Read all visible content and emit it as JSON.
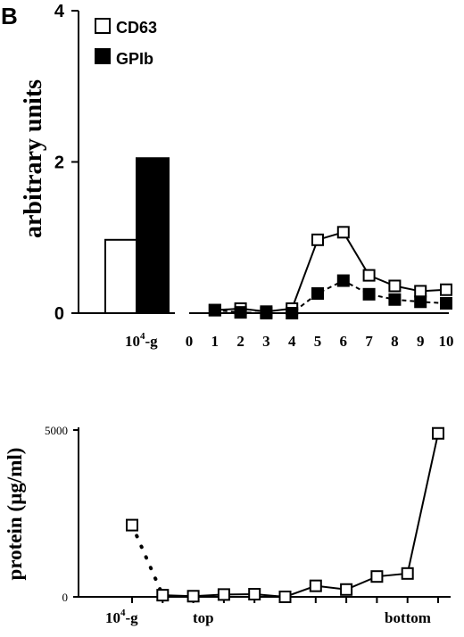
{
  "panel_label": "B",
  "chart_data": [
    {
      "type": "bar+line",
      "ylabel": "arbitrary units",
      "ylim": [
        0,
        4
      ],
      "yticks": [
        "0",
        "2",
        "4"
      ],
      "legend": [
        {
          "name": "CD63",
          "marker": "open-square"
        },
        {
          "name": "GPIb",
          "marker": "filled-square"
        }
      ],
      "bars": {
        "category": "10⁴-g",
        "category_base": "10",
        "category_sup": "4",
        "category_suffix": "-g",
        "series": [
          {
            "name": "CD63",
            "value": 0.97,
            "fill": "#ffffff"
          },
          {
            "name": "GPIb",
            "value": 2.05,
            "fill": "#000000"
          }
        ]
      },
      "xticks": [
        "0",
        "1",
        "2",
        "3",
        "4",
        "5",
        "6",
        "7",
        "8",
        "9",
        "10"
      ],
      "series": [
        {
          "name": "CD63",
          "marker": "open-square",
          "line": "solid",
          "x": [
            1,
            2,
            3,
            4,
            5,
            6,
            7,
            8,
            9,
            10
          ],
          "values": [
            0.04,
            0.06,
            0.02,
            0.06,
            0.97,
            1.07,
            0.5,
            0.36,
            0.29,
            0.31
          ]
        },
        {
          "name": "GPIb",
          "marker": "filled-square",
          "line": "dashed",
          "x": [
            1,
            2,
            3,
            4,
            5,
            6,
            7,
            8,
            9,
            10
          ],
          "values": [
            0.04,
            0.01,
            0.0,
            0.0,
            0.26,
            0.43,
            0.25,
            0.18,
            0.15,
            0.13
          ]
        }
      ]
    },
    {
      "type": "line",
      "ylabel": "protein (µg/ml)",
      "ylim": [
        0,
        5000
      ],
      "yticks": [
        "0",
        "5000"
      ],
      "xlabels": {
        "first_base": "10",
        "first_sup": "4",
        "first_suffix": "-g",
        "top": "top",
        "bottom": "bottom"
      },
      "reference_point": {
        "x": 0,
        "value": 2150
      },
      "series": [
        {
          "name": "protein",
          "marker": "open-square",
          "line": "solid",
          "x": [
            1,
            2,
            3,
            4,
            5,
            6,
            7,
            8,
            9,
            10,
            11
          ],
          "values": [
            50,
            20,
            70,
            80,
            0,
            330,
            220,
            610,
            700,
            4900,
            null
          ]
        }
      ]
    }
  ]
}
